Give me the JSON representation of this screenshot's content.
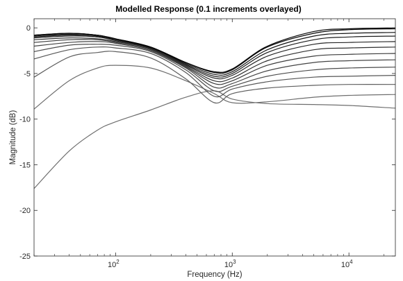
{
  "chart_data": {
    "type": "line",
    "title": "Modelled Response (0.1 increments overlayed)",
    "xlabel": "Frequency (Hz)",
    "ylabel": "Magnitude (dB)",
    "x_scale": "log",
    "xlim": [
      20,
      25000
    ],
    "ylim": [
      -25,
      1
    ],
    "x_ticks": [
      {
        "value": 100,
        "base": "10",
        "exp": "2"
      },
      {
        "value": 1000,
        "base": "10",
        "exp": "3"
      },
      {
        "value": 10000,
        "base": "10",
        "exp": "4"
      }
    ],
    "y_ticks": [
      0,
      -5,
      -10,
      -15,
      -20,
      -25
    ],
    "grid": false,
    "legend": "none",
    "x": [
      20,
      40,
      70,
      100,
      200,
      400,
      700,
      1000,
      2000,
      5000,
      10000,
      25000
    ],
    "series": [
      {
        "values": [
          -17.6,
          -13.5,
          -11.2,
          -10.3,
          -9.0,
          -7.6,
          -6.9,
          -7.8,
          -8.3,
          -8.4,
          -8.5,
          -8.8
        ],
        "color": "#6e6e6e"
      },
      {
        "values": [
          -8.9,
          -5.8,
          -4.4,
          -4.1,
          -4.4,
          -5.8,
          -7.2,
          -8.2,
          -8.1,
          -7.6,
          -7.4,
          -7.3
        ],
        "color": "#6e6e6e"
      },
      {
        "values": [
          -5.4,
          -3.2,
          -2.7,
          -2.6,
          -3.3,
          -5.6,
          -8.2,
          -7.2,
          -6.6,
          -6.3,
          -6.2,
          -6.2
        ],
        "color": "#5e5e5e"
      },
      {
        "values": [
          -3.4,
          -2.4,
          -2.1,
          -2.2,
          -2.8,
          -4.9,
          -7.5,
          -6.7,
          -5.9,
          -5.4,
          -5.3,
          -5.2
        ],
        "color": "#555555"
      },
      {
        "values": [
          -2.6,
          -1.9,
          -1.8,
          -1.9,
          -2.6,
          -4.6,
          -6.9,
          -6.4,
          -5.3,
          -4.6,
          -4.4,
          -4.3
        ],
        "color": "#4c4c4c"
      },
      {
        "values": [
          -2.0,
          -1.6,
          -1.5,
          -1.7,
          -2.5,
          -4.4,
          -6.5,
          -6.1,
          -4.7,
          -3.8,
          -3.6,
          -3.5
        ],
        "color": "#434343"
      },
      {
        "values": [
          -1.6,
          -1.3,
          -1.3,
          -1.6,
          -2.4,
          -4.3,
          -6.1,
          -5.8,
          -4.1,
          -3.1,
          -2.9,
          -2.8
        ],
        "color": "#3a3a3a"
      },
      {
        "values": [
          -1.3,
          -1.1,
          -1.2,
          -1.5,
          -2.3,
          -4.2,
          -5.8,
          -5.5,
          -3.6,
          -2.4,
          -2.2,
          -2.1
        ],
        "color": "#303030"
      },
      {
        "values": [
          -1.1,
          -0.9,
          -1.0,
          -1.4,
          -2.3,
          -4.1,
          -5.5,
          -5.2,
          -3.1,
          -1.8,
          -1.6,
          -1.5
        ],
        "color": "#262626"
      },
      {
        "values": [
          -1.0,
          -0.8,
          -1.0,
          -1.3,
          -2.2,
          -4.0,
          -5.3,
          -5.0,
          -2.7,
          -1.3,
          -1.0,
          -0.9
        ],
        "color": "#1c1c1c"
      },
      {
        "values": [
          -0.9,
          -0.7,
          -0.9,
          -1.3,
          -2.2,
          -3.9,
          -5.1,
          -4.8,
          -2.4,
          -0.9,
          -0.6,
          -0.5
        ],
        "color": "#121212"
      },
      {
        "values": [
          -0.8,
          -0.6,
          -0.8,
          -1.2,
          -2.1,
          -3.8,
          -4.9,
          -4.6,
          -2.1,
          -0.6,
          -0.2,
          -0.1
        ],
        "color": "#080808"
      },
      {
        "values": [
          -0.8,
          -0.6,
          -0.8,
          -1.2,
          -2.1,
          -3.8,
          -4.8,
          -4.5,
          -2.0,
          -0.4,
          -0.1,
          0.0
        ],
        "color": "#000000"
      }
    ]
  }
}
